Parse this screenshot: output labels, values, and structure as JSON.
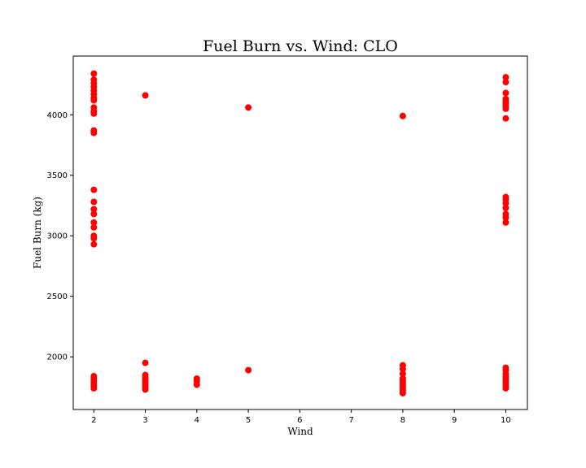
{
  "chart_data": {
    "type": "scatter",
    "title": "Fuel Burn vs. Wind: CLO",
    "xlabel": "Wind",
    "ylabel": "Fuel Burn (kg)",
    "xlim": [
      1.6,
      10.42
    ],
    "ylim": [
      1565,
      4485
    ],
    "xticks": [
      2,
      3,
      4,
      5,
      6,
      7,
      8,
      9,
      10
    ],
    "yticks": [
      2000,
      2500,
      3000,
      3500,
      4000
    ],
    "grid": false,
    "color": "#ff0000",
    "points": [
      {
        "x": 2,
        "y": 4340
      },
      {
        "x": 2,
        "y": 4290
      },
      {
        "x": 2,
        "y": 4260
      },
      {
        "x": 2,
        "y": 4230
      },
      {
        "x": 2,
        "y": 4200
      },
      {
        "x": 2,
        "y": 4170
      },
      {
        "x": 2,
        "y": 4140
      },
      {
        "x": 2,
        "y": 4120
      },
      {
        "x": 2,
        "y": 4060
      },
      {
        "x": 2,
        "y": 4030
      },
      {
        "x": 2,
        "y": 4010
      },
      {
        "x": 2,
        "y": 3870
      },
      {
        "x": 2,
        "y": 3850
      },
      {
        "x": 2,
        "y": 3380
      },
      {
        "x": 2,
        "y": 3280
      },
      {
        "x": 2,
        "y": 3220
      },
      {
        "x": 2,
        "y": 3180
      },
      {
        "x": 2,
        "y": 3110
      },
      {
        "x": 2,
        "y": 3070
      },
      {
        "x": 2,
        "y": 3000
      },
      {
        "x": 2,
        "y": 2980
      },
      {
        "x": 2,
        "y": 2930
      },
      {
        "x": 2,
        "y": 1840
      },
      {
        "x": 2,
        "y": 1820
      },
      {
        "x": 2,
        "y": 1800
      },
      {
        "x": 2,
        "y": 1780
      },
      {
        "x": 2,
        "y": 1760
      },
      {
        "x": 2,
        "y": 1740
      },
      {
        "x": 3,
        "y": 4160
      },
      {
        "x": 3,
        "y": 1950
      },
      {
        "x": 3,
        "y": 1850
      },
      {
        "x": 3,
        "y": 1830
      },
      {
        "x": 3,
        "y": 1810
      },
      {
        "x": 3,
        "y": 1790
      },
      {
        "x": 3,
        "y": 1770
      },
      {
        "x": 3,
        "y": 1750
      },
      {
        "x": 3,
        "y": 1730
      },
      {
        "x": 4,
        "y": 1820
      },
      {
        "x": 4,
        "y": 1800
      },
      {
        "x": 4,
        "y": 1770
      },
      {
        "x": 5,
        "y": 4060
      },
      {
        "x": 5,
        "y": 1890
      },
      {
        "x": 8,
        "y": 3990
      },
      {
        "x": 8,
        "y": 1930
      },
      {
        "x": 8,
        "y": 1900
      },
      {
        "x": 8,
        "y": 1860
      },
      {
        "x": 8,
        "y": 1820
      },
      {
        "x": 8,
        "y": 1800
      },
      {
        "x": 8,
        "y": 1780
      },
      {
        "x": 8,
        "y": 1760
      },
      {
        "x": 8,
        "y": 1740
      },
      {
        "x": 8,
        "y": 1720
      },
      {
        "x": 8,
        "y": 1700
      },
      {
        "x": 10,
        "y": 4310
      },
      {
        "x": 10,
        "y": 4270
      },
      {
        "x": 10,
        "y": 4180
      },
      {
        "x": 10,
        "y": 4130
      },
      {
        "x": 10,
        "y": 4110
      },
      {
        "x": 10,
        "y": 4090
      },
      {
        "x": 10,
        "y": 4070
      },
      {
        "x": 10,
        "y": 4050
      },
      {
        "x": 10,
        "y": 3970
      },
      {
        "x": 10,
        "y": 3320
      },
      {
        "x": 10,
        "y": 3300
      },
      {
        "x": 10,
        "y": 3270
      },
      {
        "x": 10,
        "y": 3230
      },
      {
        "x": 10,
        "y": 3180
      },
      {
        "x": 10,
        "y": 3150
      },
      {
        "x": 10,
        "y": 3110
      },
      {
        "x": 10,
        "y": 1910
      },
      {
        "x": 10,
        "y": 1890
      },
      {
        "x": 10,
        "y": 1860
      },
      {
        "x": 10,
        "y": 1840
      },
      {
        "x": 10,
        "y": 1820
      },
      {
        "x": 10,
        "y": 1800
      },
      {
        "x": 10,
        "y": 1780
      },
      {
        "x": 10,
        "y": 1760
      },
      {
        "x": 10,
        "y": 1740
      }
    ]
  }
}
